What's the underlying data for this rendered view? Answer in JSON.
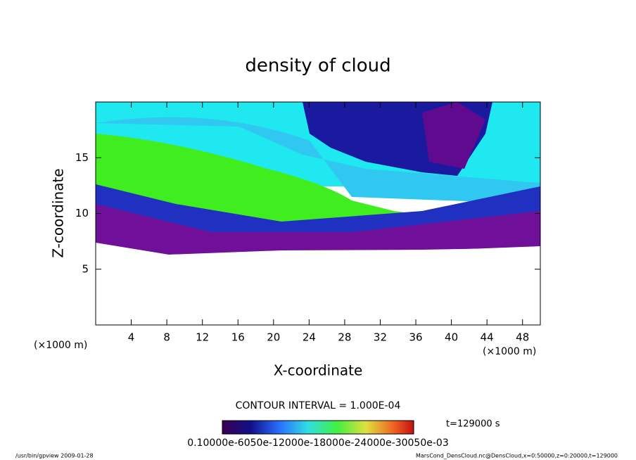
{
  "chart_data": {
    "type": "contour",
    "title": "density of cloud",
    "x_label": "X-coordinate",
    "y_label": "Z-coordinate",
    "x_unit": "(×1000 m)",
    "xlim": [
      0,
      50
    ],
    "ylim": [
      0,
      20
    ],
    "xticks": [
      4,
      8,
      12,
      16,
      20,
      24,
      28,
      32,
      36,
      40,
      44,
      48
    ],
    "yticks": [
      5,
      10,
      15
    ],
    "contour_interval": "CONTOUR INTERVAL = 1.000E-04",
    "colorbar_labels": "0.10000e-6050e-12000e-18000e-24000e-30050e-03",
    "time_label": "t=129000 s",
    "footer_left": "/usr/bin/gpview   2009-01-28",
    "footer_right": "MarsCond_DensCloud.nc@DensCloud,x=0:50000,z=0:20000,t=129000"
  }
}
